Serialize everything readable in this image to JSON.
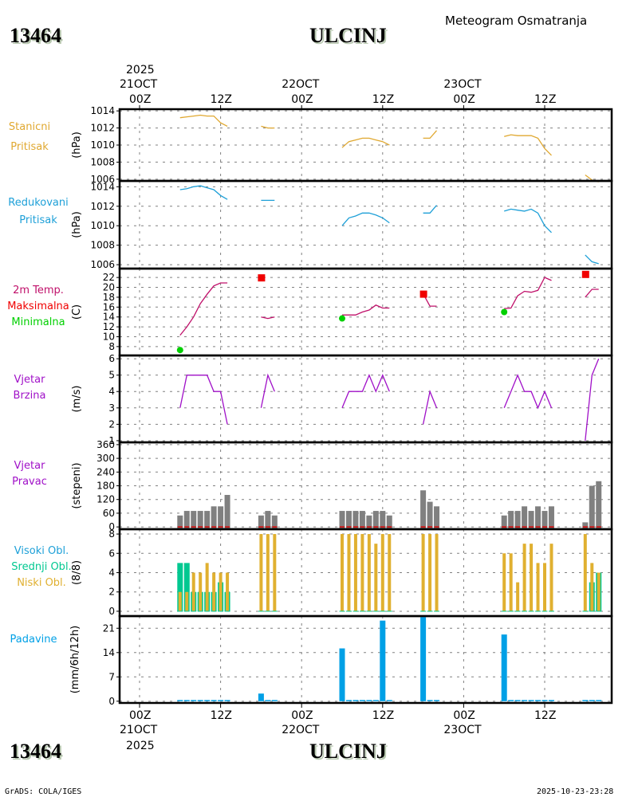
{
  "header": {
    "station_id": "13464",
    "station_name": "ULCINJ",
    "subtitle": "Meteogram Osmatranja"
  },
  "footer": {
    "credit": "GrADS: COLA/IGES",
    "timestamp": "2025-10-23-23:28"
  },
  "time_axis": {
    "year": "2025",
    "ticks": [
      {
        "hour": 0,
        "label": "00Z",
        "date": "21OCT"
      },
      {
        "hour": 12,
        "label": "12Z",
        "date": ""
      },
      {
        "hour": 24,
        "label": "00Z",
        "date": "22OCT"
      },
      {
        "hour": 36,
        "label": "12Z",
        "date": ""
      },
      {
        "hour": 48,
        "label": "00Z",
        "date": "23OCT"
      },
      {
        "hour": 60,
        "label": "12Z",
        "date": ""
      }
    ]
  },
  "colors": {
    "station_pressure": "#e0a830",
    "reduced_pressure": "#1ea0d8",
    "temperature": "#c0106a",
    "tmax": "#f00000",
    "tmin": "#00d000",
    "wind_speed": "#a010c8",
    "wind_dir": "#808080",
    "wind_dir_zero": "#e00000",
    "high_cloud": "#1ea0d8",
    "mid_cloud": "#00c890",
    "low_cloud": "#e0b030",
    "precip": "#00a0e6"
  },
  "chart_data": [
    {
      "type": "line",
      "id": "station_pressure",
      "label_lines": [
        "Stanicni",
        "Pritisak"
      ],
      "ylabel": "(hPa)",
      "yticks": [
        1006,
        1008,
        1010,
        1012,
        1014
      ],
      "ylim": [
        1005.8,
        1014.2
      ],
      "segments": [
        [
          [
            6,
            1013.2
          ],
          [
            7,
            1013.3
          ],
          [
            8,
            1013.4
          ],
          [
            9,
            1013.5
          ],
          [
            10,
            1013.4
          ],
          [
            11,
            1013.4
          ],
          [
            12,
            1012.6
          ],
          [
            13,
            1012.2
          ]
        ],
        [
          [
            18,
            1012.2
          ],
          [
            19,
            1012.0
          ],
          [
            20,
            1012.0
          ]
        ],
        [
          [
            30,
            1009.7
          ],
          [
            31,
            1010.4
          ],
          [
            32,
            1010.6
          ],
          [
            33,
            1010.8
          ],
          [
            34,
            1010.8
          ],
          [
            35,
            1010.6
          ],
          [
            36,
            1010.4
          ],
          [
            37,
            1010.0
          ]
        ],
        [
          [
            42,
            1010.8
          ],
          [
            43,
            1010.8
          ],
          [
            44,
            1011.7
          ]
        ],
        [
          [
            54,
            1011.0
          ],
          [
            55,
            1011.2
          ],
          [
            56,
            1011.1
          ],
          [
            57,
            1011.1
          ],
          [
            58,
            1011.1
          ],
          [
            59,
            1010.8
          ],
          [
            60,
            1009.6
          ],
          [
            61,
            1008.8
          ]
        ],
        [
          [
            66,
            1006.5
          ],
          [
            67,
            1005.9
          ],
          [
            68,
            1005.7
          ]
        ]
      ]
    },
    {
      "type": "line",
      "id": "reduced_pressure",
      "label_lines": [
        "Redukovani",
        "Pritisak"
      ],
      "ylabel": "(hPa)",
      "yticks": [
        1006,
        1008,
        1010,
        1012,
        1014
      ],
      "ylim": [
        1005.6,
        1014.6
      ],
      "segments": [
        [
          [
            6,
            1013.7
          ],
          [
            7,
            1013.8
          ],
          [
            8,
            1014.0
          ],
          [
            9,
            1014.1
          ],
          [
            10,
            1013.9
          ],
          [
            11,
            1013.7
          ],
          [
            12,
            1013.1
          ],
          [
            13,
            1012.7
          ]
        ],
        [
          [
            18,
            1012.6
          ],
          [
            19,
            1012.6
          ],
          [
            20,
            1012.6
          ]
        ],
        [
          [
            30,
            1010.0
          ],
          [
            31,
            1010.8
          ],
          [
            32,
            1011.0
          ],
          [
            33,
            1011.3
          ],
          [
            34,
            1011.3
          ],
          [
            35,
            1011.1
          ],
          [
            36,
            1010.8
          ],
          [
            37,
            1010.3
          ]
        ],
        [
          [
            42,
            1011.3
          ],
          [
            43,
            1011.3
          ],
          [
            44,
            1012.1
          ]
        ],
        [
          [
            54,
            1011.5
          ],
          [
            55,
            1011.7
          ],
          [
            56,
            1011.6
          ],
          [
            57,
            1011.5
          ],
          [
            58,
            1011.7
          ],
          [
            59,
            1011.3
          ],
          [
            60,
            1010.0
          ],
          [
            61,
            1009.3
          ]
        ],
        [
          [
            66,
            1007.0
          ],
          [
            67,
            1006.3
          ],
          [
            68,
            1006.1
          ]
        ]
      ]
    },
    {
      "type": "line",
      "id": "temperature",
      "label_lines": [
        "2m Temp.",
        "Maksimalna",
        "Minimalna"
      ],
      "ylabel": "(C)",
      "yticks": [
        8,
        10,
        12,
        14,
        16,
        18,
        20,
        22
      ],
      "ylim": [
        6.2,
        23.8
      ],
      "segments": [
        [
          [
            6,
            10.3
          ],
          [
            7,
            12.0
          ],
          [
            8,
            14.0
          ],
          [
            9,
            16.7
          ],
          [
            10,
            18.6
          ],
          [
            11,
            20.3
          ],
          [
            12,
            20.9
          ],
          [
            13,
            20.9
          ]
        ],
        [
          [
            18,
            14.0
          ],
          [
            19,
            13.7
          ],
          [
            20,
            14.0
          ]
        ],
        [
          [
            30,
            14.4
          ],
          [
            31,
            14.4
          ],
          [
            32,
            14.4
          ],
          [
            33,
            15.0
          ],
          [
            34,
            15.4
          ],
          [
            35,
            16.4
          ],
          [
            36,
            15.8
          ],
          [
            37,
            15.8
          ]
        ],
        [
          [
            42,
            18.7
          ],
          [
            43,
            16.2
          ],
          [
            44,
            16.2
          ]
        ],
        [
          [
            54,
            15.7
          ],
          [
            55,
            15.8
          ],
          [
            56,
            18.3
          ],
          [
            57,
            19.2
          ],
          [
            58,
            19.0
          ],
          [
            59,
            19.4
          ],
          [
            60,
            22.0
          ],
          [
            61,
            21.4
          ]
        ],
        [
          [
            66,
            18.0
          ],
          [
            67,
            19.6
          ],
          [
            68,
            19.6
          ]
        ]
      ],
      "tmax_points": [
        [
          18,
          22.0
        ],
        [
          42,
          18.7
        ],
        [
          66,
          22.7
        ]
      ],
      "tmin_points": [
        [
          6,
          7.3
        ],
        [
          30,
          13.7
        ],
        [
          54,
          15.0
        ]
      ]
    },
    {
      "type": "line",
      "id": "wind_speed",
      "label_lines": [
        "Vjetar",
        "Brzina"
      ],
      "ylabel": "(m/s)",
      "yticks": [
        1,
        2,
        3,
        4,
        5,
        6
      ],
      "ylim": [
        0.9,
        6.2
      ],
      "segments": [
        [
          [
            6,
            3
          ],
          [
            7,
            5
          ],
          [
            8,
            5
          ],
          [
            9,
            5
          ],
          [
            10,
            5
          ],
          [
            11,
            4
          ],
          [
            12,
            4
          ],
          [
            13,
            2
          ]
        ],
        [
          [
            18,
            3
          ],
          [
            19,
            5
          ],
          [
            20,
            4
          ]
        ],
        [
          [
            30,
            3
          ],
          [
            31,
            4
          ],
          [
            32,
            4
          ],
          [
            33,
            4
          ],
          [
            34,
            5
          ],
          [
            35,
            4
          ],
          [
            36,
            5
          ],
          [
            37,
            4
          ]
        ],
        [
          [
            42,
            2
          ],
          [
            43,
            4
          ],
          [
            44,
            3
          ]
        ],
        [
          [
            54,
            3
          ],
          [
            55,
            4
          ],
          [
            56,
            5
          ],
          [
            57,
            4
          ],
          [
            58,
            4
          ],
          [
            59,
            3
          ],
          [
            60,
            4
          ],
          [
            61,
            3
          ]
        ],
        [
          [
            66,
            1
          ],
          [
            67,
            5
          ],
          [
            68,
            6
          ]
        ]
      ]
    },
    {
      "type": "bar",
      "id": "wind_direction",
      "label_lines": [
        "Vjetar",
        "Pravac"
      ],
      "ylabel": "(stepeni)",
      "yticks": [
        0,
        60,
        120,
        180,
        240,
        300,
        360
      ],
      "ylim": [
        -10,
        370
      ],
      "bars": [
        [
          6,
          50
        ],
        [
          7,
          70
        ],
        [
          8,
          70
        ],
        [
          9,
          70
        ],
        [
          10,
          70
        ],
        [
          11,
          90
        ],
        [
          12,
          90
        ],
        [
          13,
          140
        ],
        [
          18,
          50
        ],
        [
          19,
          70
        ],
        [
          20,
          50
        ],
        [
          30,
          70
        ],
        [
          31,
          70
        ],
        [
          32,
          70
        ],
        [
          33,
          70
        ],
        [
          34,
          50
        ],
        [
          35,
          70
        ],
        [
          36,
          70
        ],
        [
          37,
          50
        ],
        [
          42,
          160
        ],
        [
          43,
          110
        ],
        [
          44,
          90
        ],
        [
          54,
          50
        ],
        [
          55,
          70
        ],
        [
          56,
          70
        ],
        [
          57,
          90
        ],
        [
          58,
          70
        ],
        [
          59,
          90
        ],
        [
          60,
          70
        ],
        [
          61,
          90
        ],
        [
          66,
          20
        ],
        [
          67,
          180
        ],
        [
          68,
          200
        ]
      ]
    },
    {
      "type": "bar",
      "id": "cloud_cover",
      "label_lines": [
        "Visoki Obl.",
        "Srednji Obl.",
        "Niski Obl."
      ],
      "ylabel": "(8/8)",
      "yticks": [
        0,
        2,
        4,
        6,
        8
      ],
      "ylim": [
        -0.5,
        8.5
      ],
      "hours": [
        6,
        7,
        8,
        9,
        10,
        11,
        12,
        13,
        18,
        19,
        20,
        30,
        31,
        32,
        33,
        34,
        35,
        36,
        37,
        42,
        43,
        44,
        54,
        55,
        56,
        57,
        58,
        59,
        60,
        61,
        66,
        67,
        68
      ],
      "high": [
        0,
        0,
        0,
        0,
        0,
        0,
        0,
        0,
        0,
        0,
        0,
        0,
        0,
        0,
        0,
        0,
        0,
        0,
        0,
        0,
        0,
        0,
        0,
        0,
        0,
        0,
        0,
        0,
        0,
        0,
        0,
        0,
        0
      ],
      "mid": [
        5,
        5,
        2,
        2,
        2,
        2,
        3,
        2,
        0,
        0,
        0,
        0,
        0,
        0,
        0,
        0,
        0,
        0,
        0,
        0,
        0,
        0,
        0,
        0,
        0,
        0,
        0,
        0,
        0,
        0,
        0,
        3,
        4
      ],
      "low": [
        2,
        2,
        4,
        4,
        5,
        4,
        4,
        4,
        8,
        8,
        8,
        8,
        8,
        8,
        8,
        8,
        7,
        8,
        8,
        8,
        8,
        8,
        6,
        6,
        3,
        7,
        7,
        5,
        5,
        7,
        8,
        5,
        4
      ]
    },
    {
      "type": "bar",
      "id": "precipitation",
      "label_lines": [
        "Padavine"
      ],
      "ylabel": "(mm/6h/12h)",
      "yticks": [
        0,
        7,
        14,
        21
      ],
      "ylim": [
        -0.5,
        24.5
      ],
      "bars": [
        [
          6,
          0.2
        ],
        [
          7,
          0.2
        ],
        [
          8,
          0.2
        ],
        [
          9,
          0.2
        ],
        [
          10,
          0.2
        ],
        [
          11,
          0.2
        ],
        [
          12,
          0.2
        ],
        [
          13,
          0.2
        ],
        [
          18,
          2.2
        ],
        [
          19,
          0.2
        ],
        [
          20,
          0.2
        ],
        [
          30,
          15.2
        ],
        [
          31,
          0.2
        ],
        [
          32,
          0.2
        ],
        [
          33,
          0.2
        ],
        [
          34,
          0.2
        ],
        [
          35,
          0.2
        ],
        [
          36,
          23.2
        ],
        [
          37,
          0.2
        ],
        [
          42,
          24.2
        ],
        [
          43,
          0.2
        ],
        [
          44,
          0.2
        ],
        [
          54,
          19.2
        ],
        [
          55,
          0.2
        ],
        [
          56,
          0.2
        ],
        [
          57,
          0.2
        ],
        [
          58,
          0.2
        ],
        [
          59,
          0.2
        ],
        [
          60,
          0.2
        ],
        [
          61,
          0.2
        ],
        [
          66,
          0.2
        ],
        [
          67,
          0.2
        ],
        [
          68,
          0.2
        ]
      ]
    }
  ]
}
